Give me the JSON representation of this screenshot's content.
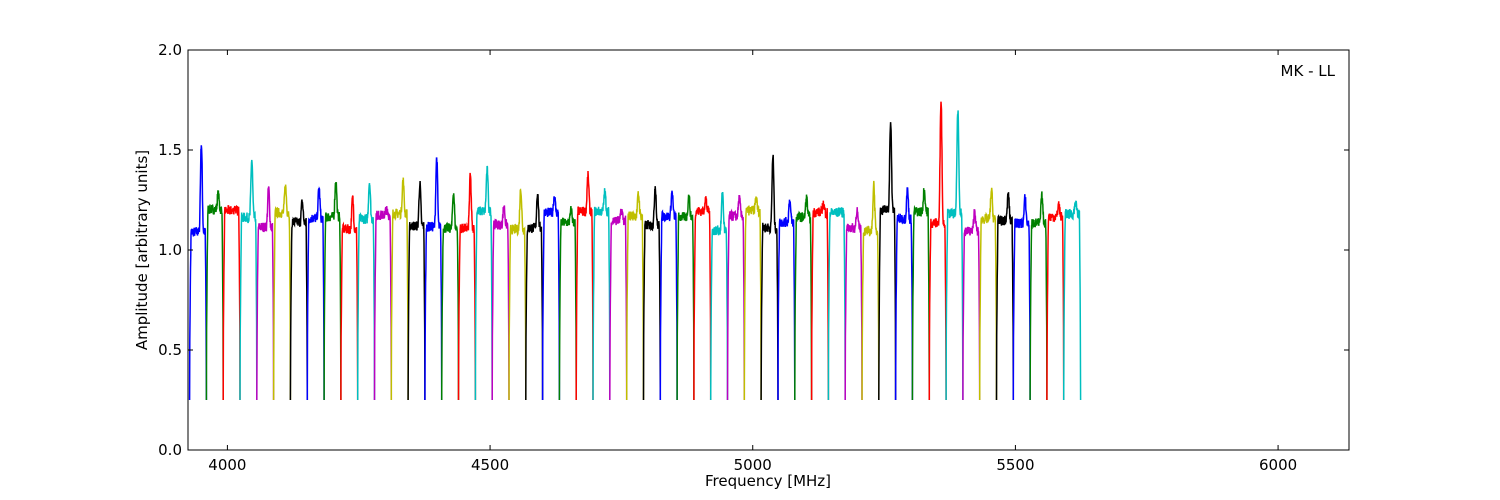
{
  "chart_data": {
    "type": "line",
    "title": "",
    "xlabel": "Frequency [MHz]",
    "ylabel": "Amplitude [arbitrary units]",
    "annotation": "MK - LL",
    "xlim": [
      3925,
      6135
    ],
    "ylim": [
      0.0,
      2.0
    ],
    "xticks": [
      4000,
      4500,
      5000,
      5500,
      6000
    ],
    "xtick_labels": [
      "4000",
      "4500",
      "5000",
      "5500",
      "6000"
    ],
    "yticks": [
      0.0,
      0.5,
      1.0,
      1.5,
      2.0
    ],
    "ytick_labels": [
      "0.0",
      "0.5",
      "1.0",
      "1.5",
      "2.0"
    ],
    "grid": false,
    "channel_width_mhz": 32,
    "channel_start_mhz": 3928,
    "color_cycle": [
      "#0000ff",
      "#008000",
      "#ff0000",
      "#00bfbf",
      "#bf00bf",
      "#bfbf00",
      "#000000"
    ],
    "flagged_color": "#bfbfbf",
    "channel_peaks": [
      1.53,
      1.28,
      1.21,
      1.45,
      1.31,
      1.32,
      1.24,
      1.31,
      1.35,
      1.26,
      1.34,
      1.2,
      1.35,
      1.33,
      1.46,
      1.29,
      1.37,
      1.4,
      1.22,
      1.31,
      1.29,
      1.27,
      1.2,
      1.37,
      1.29,
      1.2,
      1.28,
      1.32,
      1.29,
      1.27,
      1.26,
      1.29,
      1.26,
      1.26,
      1.47,
      1.25,
      1.26,
      1.23,
      1.2,
      1.2,
      1.33,
      1.64,
      1.3,
      1.3,
      1.76,
      1.7,
      1.2,
      1.3,
      1.28,
      1.26,
      1.27,
      1.23,
      1.24
    ]
  }
}
